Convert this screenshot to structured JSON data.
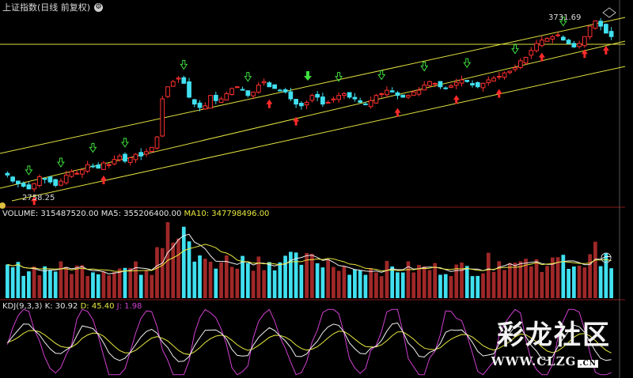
{
  "header": {
    "title": "上证指数(日线 前复权)",
    "up_icon": "up-arrow-icon",
    "settings_icon": "circle-gear-icon"
  },
  "colors": {
    "up": "#ff3030",
    "down": "#40e0f0",
    "channel": "#e0e040",
    "ma5": "#f0f0f0",
    "ma10": "#e8e840",
    "kdj_k": "#f0f0f0",
    "kdj_d": "#e8e840",
    "kdj_j": "#d040d0",
    "signal_up": "#ff2a2a",
    "signal_down": "#3ee03e"
  },
  "chart_data": [
    {
      "type": "candlestick",
      "title": "上证指数(日线 前复权)",
      "annotations": {
        "high_label": "3731.69",
        "low_label": "2758.25"
      },
      "series": [
        {
          "name": "price",
          "values": [
            2840,
            2805,
            2790,
            2775,
            2760,
            2790,
            2830,
            2815,
            2800,
            2780,
            2805,
            2840,
            2860,
            2850,
            2870,
            2900,
            2890,
            2880,
            2910,
            2900,
            2930,
            2950,
            2920,
            2940,
            2960,
            2950,
            2975,
            3000,
            3060,
            3280,
            3350,
            3380,
            3400,
            3370,
            3290,
            3250,
            3230,
            3240,
            3300,
            3270,
            3280,
            3310,
            3340,
            3350,
            3330,
            3300,
            3320,
            3360,
            3380,
            3350,
            3340,
            3330,
            3320,
            3280,
            3250,
            3240,
            3260,
            3300,
            3290,
            3250,
            3260,
            3280,
            3300,
            3310,
            3290,
            3280,
            3260,
            3250,
            3270,
            3300,
            3310,
            3330,
            3320,
            3300,
            3290,
            3300,
            3320,
            3330,
            3360,
            3380,
            3370,
            3350,
            3340,
            3355,
            3375,
            3390,
            3380,
            3360,
            3350,
            3370,
            3390,
            3400,
            3410,
            3430,
            3440,
            3460,
            3500,
            3520,
            3560,
            3600,
            3620,
            3630,
            3640,
            3650,
            3620,
            3600,
            3580,
            3600,
            3640,
            3700,
            3731,
            3700,
            3660,
            3640
          ]
        }
      ]
    },
    {
      "type": "bar",
      "title": "VOLUME",
      "legend": {
        "volume_label": "VOLUME: 315487520.00",
        "ma5_label": "MA5: 355206400.00",
        "ma10_label": "MA10: 347798496.00"
      }
    },
    {
      "type": "line",
      "title": "KDJ(9,3,3)",
      "legend": {
        "name_label": "KDJ(9,3,3)",
        "k_label": "K: 30.92",
        "d_label": "D: 45.40",
        "j_label": "J: 1.98"
      }
    }
  ],
  "watermark": {
    "text": "彩龙社区",
    "url": "WWW.CLZG",
    "suffix": ".CN"
  }
}
